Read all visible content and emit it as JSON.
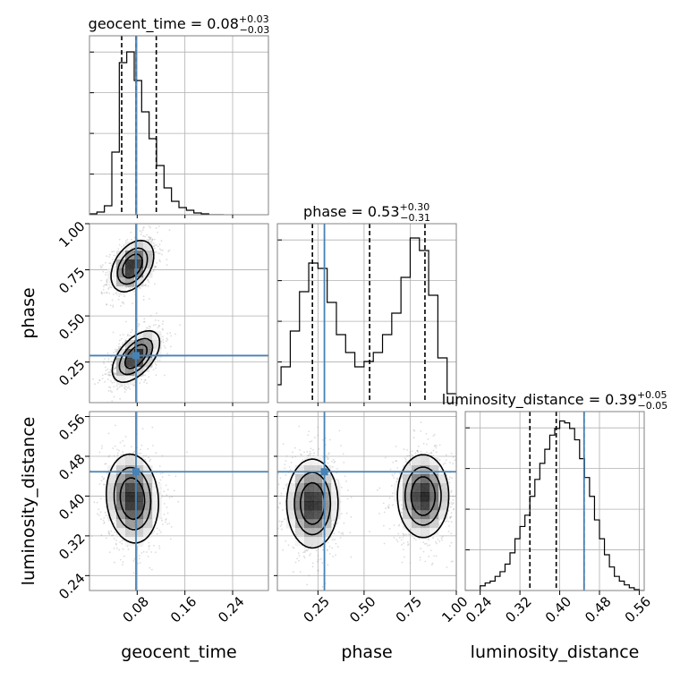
{
  "colors": {
    "truth": "#4682b4",
    "hist": "#000000",
    "quantile": "#000000",
    "grid": "#b0b0b0",
    "frame": "#808080",
    "density": "#000000"
  },
  "chart_data": {
    "type": "corner",
    "grid": true,
    "parameters": [
      {
        "key": "geocent_time",
        "label": "geocent_time",
        "range": [
          0.0,
          0.3
        ],
        "ticks": [
          0.08,
          0.16,
          0.24
        ],
        "tick_labels": [
          "0.08",
          "0.16",
          "0.24"
        ],
        "truth": 0.078
      },
      {
        "key": "phase",
        "label": "phase",
        "range": [
          0.03,
          1.0
        ],
        "ticks": [
          0.25,
          0.5,
          0.75,
          1.0
        ],
        "tick_labels": [
          "0.25",
          "0.50",
          "0.75",
          "1.00"
        ],
        "truth": 0.285
      },
      {
        "key": "luminosity_distance",
        "label": "luminosity_distance",
        "range": [
          0.21,
          0.57
        ],
        "ticks": [
          0.24,
          0.32,
          0.4,
          0.48,
          0.56
        ],
        "tick_labels": [
          "0.24",
          "0.32",
          "0.40",
          "0.48",
          "0.56"
        ],
        "truth": 0.449
      }
    ],
    "marginals": [
      {
        "key": "geocent_time",
        "title_prefix": "geocent_time = ",
        "median": "0.08",
        "plus": "+0.03",
        "minus": "−0.03",
        "quantiles": [
          0.054,
          0.078,
          0.112
        ],
        "bin_edges": [
          0.0,
          0.0125,
          0.025,
          0.0375,
          0.05,
          0.0625,
          0.075,
          0.0875,
          0.1,
          0.1125,
          0.125,
          0.1375,
          0.15,
          0.1625,
          0.175,
          0.1875,
          0.2,
          0.2125,
          0.225
        ],
        "counts": [
          1,
          3,
          10,
          70,
          170,
          182,
          150,
          115,
          85,
          55,
          30,
          15,
          8,
          5,
          2,
          1,
          0,
          0
        ],
        "ylim": [
          0,
          200
        ]
      },
      {
        "key": "phase",
        "title_prefix": "phase = ",
        "median": "0.53",
        "plus": "+0.30",
        "minus": "−0.31",
        "quantiles": [
          0.22,
          0.53,
          0.83
        ],
        "bin_edges": [
          0.0,
          0.05,
          0.1,
          0.15,
          0.2,
          0.25,
          0.3,
          0.35,
          0.4,
          0.45,
          0.5,
          0.55,
          0.6,
          0.65,
          0.7,
          0.75,
          0.8,
          0.85,
          0.9,
          0.95,
          1.0
        ],
        "counts": [
          10,
          20,
          40,
          62,
          78,
          75,
          56,
          38,
          28,
          20,
          23,
          28,
          38,
          50,
          70,
          92,
          85,
          60,
          25,
          5
        ],
        "ylim": [
          0,
          100
        ]
      },
      {
        "key": "luminosity_distance",
        "title_prefix": "luminosity_distance = ",
        "median": "0.39",
        "plus": "+0.05",
        "minus": "−0.05",
        "quantiles": [
          0.34,
          0.393,
          0.449
        ],
        "bin_edges": [
          0.21,
          0.22,
          0.23,
          0.24,
          0.25,
          0.26,
          0.27,
          0.28,
          0.29,
          0.3,
          0.31,
          0.32,
          0.33,
          0.34,
          0.35,
          0.36,
          0.37,
          0.38,
          0.39,
          0.4,
          0.41,
          0.42,
          0.43,
          0.44,
          0.45,
          0.46,
          0.47,
          0.48,
          0.49,
          0.5,
          0.51,
          0.52,
          0.53,
          0.54,
          0.55,
          0.56,
          0.57
        ],
        "counts": [
          0,
          0,
          0,
          5,
          8,
          10,
          15,
          20,
          28,
          40,
          55,
          68,
          80,
          100,
          118,
          135,
          150,
          165,
          172,
          180,
          178,
          172,
          160,
          140,
          120,
          100,
          75,
          55,
          38,
          25,
          15,
          10,
          6,
          3,
          1,
          0
        ],
        "ylim": [
          0,
          190
        ]
      }
    ],
    "joint": [
      {
        "x": "geocent_time",
        "y": "phase",
        "modes": [
          {
            "x": 0.072,
            "y": 0.77,
            "sx": 0.018,
            "sy": 0.07,
            "rho": 0.4,
            "w": 1.0
          },
          {
            "x": 0.078,
            "y": 0.28,
            "sx": 0.02,
            "sy": 0.07,
            "rho": 0.55,
            "w": 1.0
          }
        ]
      },
      {
        "x": "geocent_time",
        "y": "luminosity_distance",
        "modes": [
          {
            "x": 0.072,
            "y": 0.395,
            "sx": 0.022,
            "sy": 0.045,
            "rho": -0.1,
            "w": 1.0
          }
        ]
      },
      {
        "x": "phase",
        "y": "luminosity_distance",
        "modes": [
          {
            "x": 0.22,
            "y": 0.385,
            "sx": 0.07,
            "sy": 0.045,
            "rho": 0.0,
            "w": 1.0
          },
          {
            "x": 0.82,
            "y": 0.4,
            "sx": 0.07,
            "sy": 0.042,
            "rho": 0.0,
            "w": 1.0
          }
        ]
      }
    ]
  }
}
